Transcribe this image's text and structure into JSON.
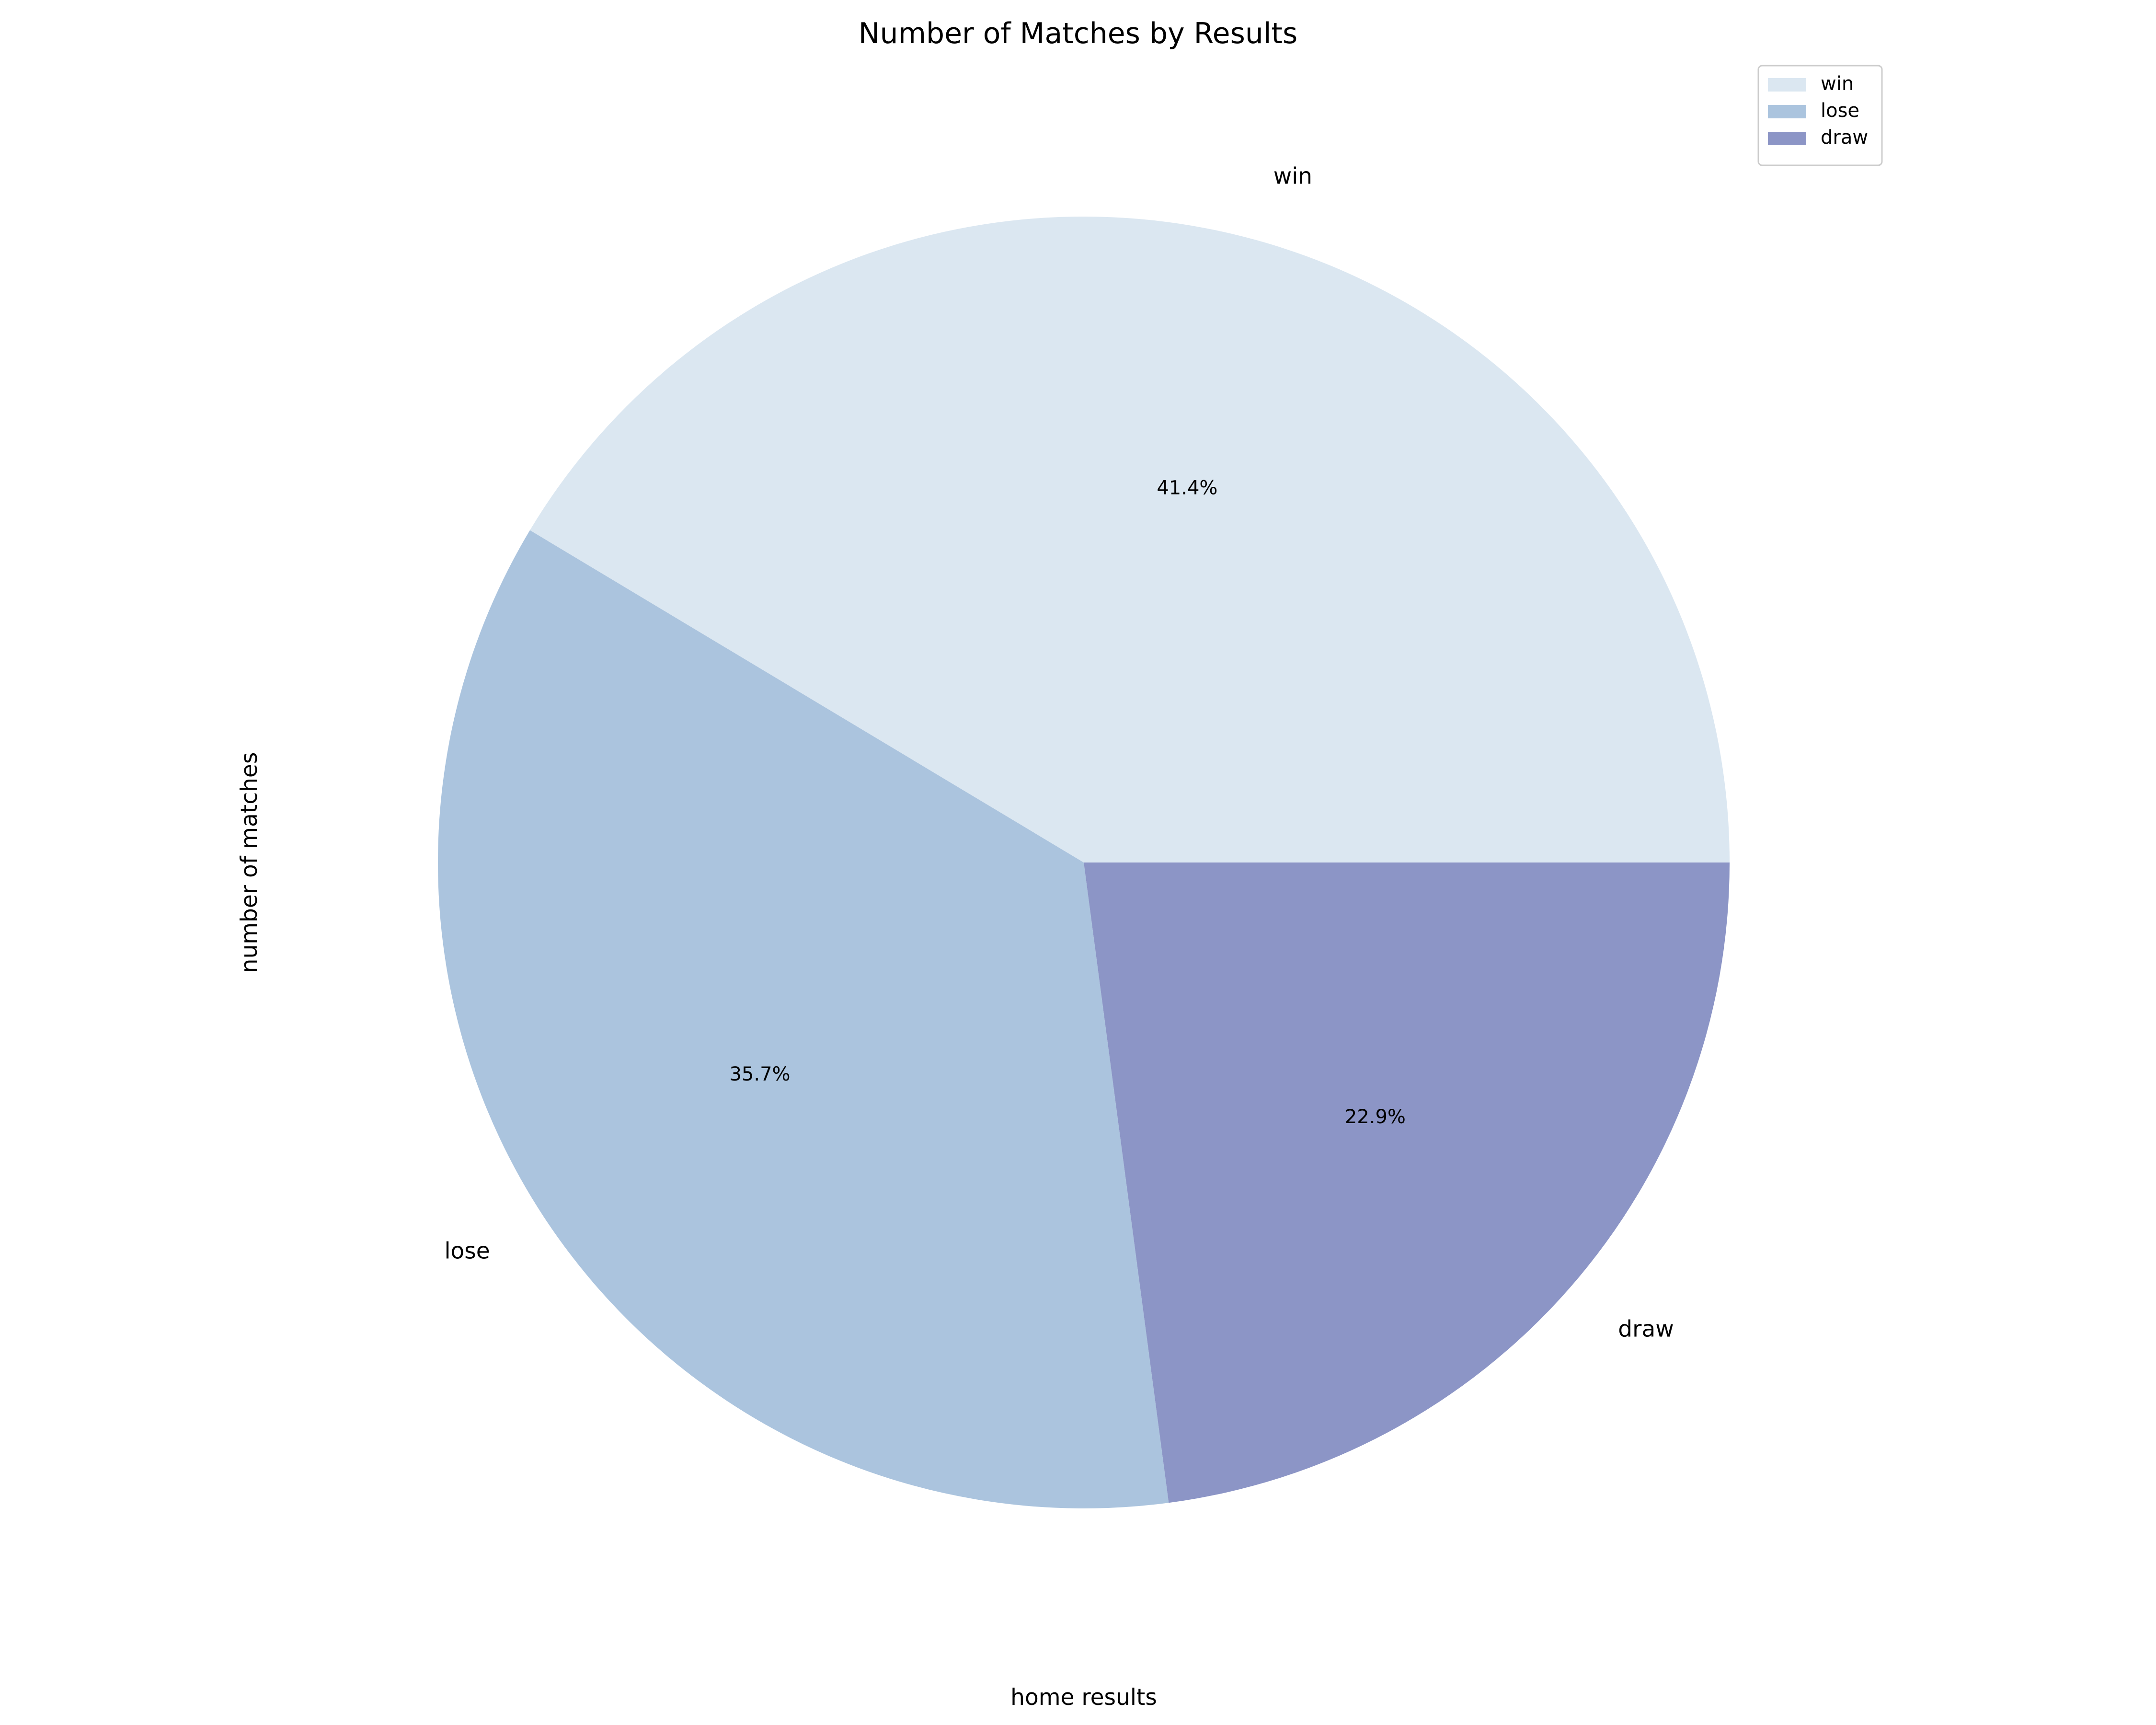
{
  "chart_data": {
    "type": "pie",
    "title": "Number of Matches by Results",
    "xlabel": "home results",
    "ylabel": "number of matches",
    "categories": [
      "win",
      "lose",
      "draw"
    ],
    "values": [
      41.4,
      35.7,
      22.9
    ],
    "percent_labels": [
      "41.4%",
      "35.7%",
      "22.9%"
    ],
    "colors": [
      "#dbe7f1",
      "#abc4de",
      "#8c95c6"
    ],
    "start_angle_deg": 0,
    "direction": "counterclockwise",
    "legend": {
      "placement": "top-right",
      "entries": [
        "win",
        "lose",
        "draw"
      ]
    }
  }
}
